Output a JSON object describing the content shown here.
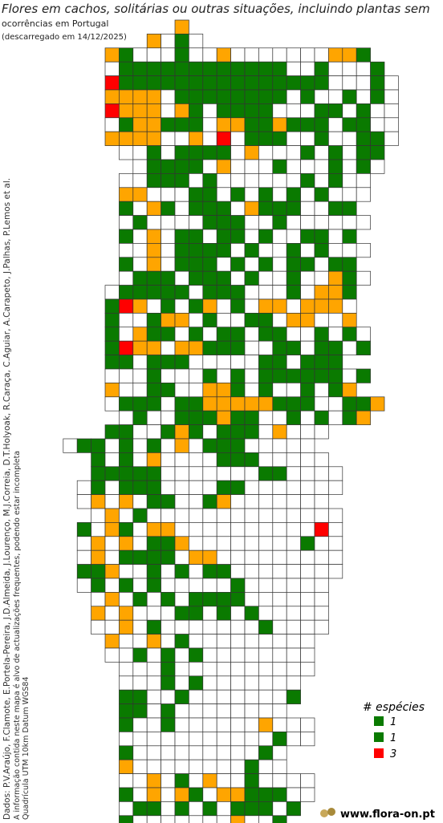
{
  "header": {
    "title": "Flores em cachos, solitárias ou outras situações, incluindo plantas sem",
    "subtitle": "ocorrências em Portugal",
    "date": "(descarregado em 14/12/2025)"
  },
  "credits": [
    "Dados: P.V.Araújo, F.Clamote, E.Portela-Pereira, J.D.Almeida, J.Lourenço, M.J.Correia, D.T.Holyoak, R.Caraça, C.Aguiar, A.Carapeto, J.Palhas, P.Lemos et al.",
    "A informação contida neste mapa é alvo de actualizações frequentes, podendo estar incompleta",
    "Quadrícula UTM 10km Datum WGS84"
  ],
  "map": {
    "colors": {
      "green": "#0a7a00",
      "orange": "#ffa500",
      "red": "#ff0000",
      "empty": "#ffffff"
    }
  },
  "legend": {
    "title": "# espécies",
    "items": [
      {
        "label": "1",
        "color": "#0a7a00"
      },
      {
        "label": "1",
        "color": "#0a7a00"
      },
      {
        "label": "3",
        "color": "#ff0000"
      }
    ]
  },
  "footer": {
    "site": "www.flora-on.pt"
  }
}
